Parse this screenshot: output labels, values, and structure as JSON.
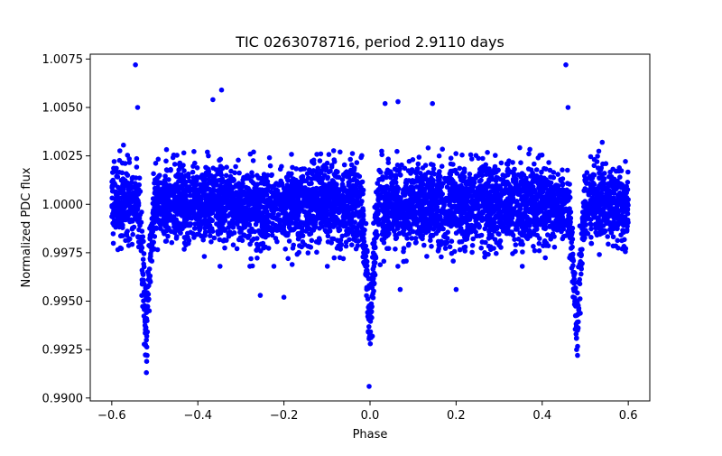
{
  "chart_data": {
    "type": "scatter",
    "title": "TIC 0263078716, period 2.9110 days",
    "xlabel": "Phase",
    "ylabel": "Normalized PDC flux",
    "xlim": [
      -0.65,
      0.65
    ],
    "ylim": [
      0.98985,
      1.00775
    ],
    "xticks": [
      -0.6,
      -0.4,
      -0.2,
      0.0,
      0.2,
      0.4,
      0.6
    ],
    "xtick_labels": [
      "−0.6",
      "−0.4",
      "−0.2",
      "0.0",
      "0.2",
      "0.4",
      "0.6"
    ],
    "yticks": [
      0.99,
      0.9925,
      0.995,
      0.9975,
      1.0,
      1.0025,
      1.005,
      1.0075
    ],
    "ytick_labels": [
      "0.9900",
      "0.9925",
      "0.9950",
      "0.9975",
      "1.0000",
      "1.0025",
      "1.0050",
      "1.0075"
    ],
    "grid": false,
    "legend": "none",
    "marker_color": "#0000ff",
    "period_days": 2.911,
    "phase_range": [
      -0.6,
      0.6
    ],
    "primary_eclipse": {
      "phase": 0.0,
      "depth_min_flux": 0.9921,
      "width_phase": 0.02
    },
    "secondary_eclipses": [
      {
        "phase": -0.52,
        "depth_min_flux": 0.9922,
        "width_phase": 0.02
      },
      {
        "phase": 0.48,
        "depth_min_flux": 0.9922,
        "width_phase": 0.02
      }
    ],
    "baseline_flux": 1.0,
    "scatter_sigma": 0.001,
    "outliers": [
      {
        "x": -0.545,
        "y": 1.0072
      },
      {
        "x": 0.455,
        "y": 1.0072
      },
      {
        "x": -0.345,
        "y": 1.0059
      },
      {
        "x": -0.365,
        "y": 1.0054
      },
      {
        "x": -0.002,
        "y": 0.9906
      },
      {
        "x": 0.065,
        "y": 1.0053
      },
      {
        "x": 0.145,
        "y": 1.0052
      },
      {
        "x": 0.035,
        "y": 1.0052
      },
      {
        "x": -0.54,
        "y": 1.005
      },
      {
        "x": 0.46,
        "y": 1.005
      },
      {
        "x": -0.518,
        "y": 0.9922
      },
      {
        "x": 0.482,
        "y": 0.9922
      },
      {
        "x": -0.255,
        "y": 0.9953
      },
      {
        "x": -0.2,
        "y": 0.9952
      },
      {
        "x": 0.2,
        "y": 0.9956
      },
      {
        "x": 0.07,
        "y": 0.9956
      }
    ]
  }
}
